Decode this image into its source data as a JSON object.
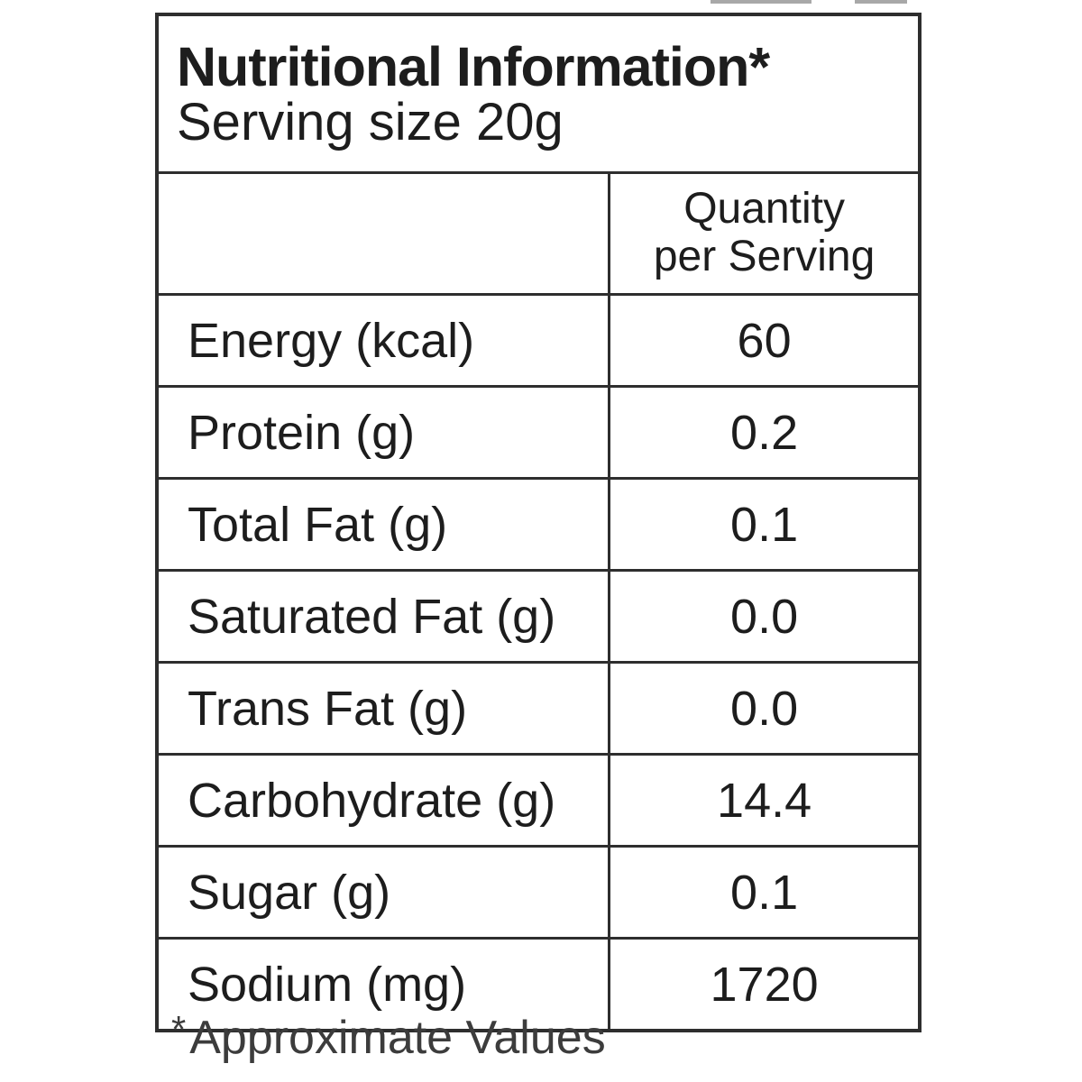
{
  "table": {
    "title": "Nutritional Information*",
    "serving_size": "Serving size 20g",
    "col_header_line1": "Quantity",
    "col_header_line2": "per Serving",
    "rows": [
      {
        "label": "Energy (kcal)",
        "value": "60"
      },
      {
        "label": "Protein (g)",
        "value": "0.2"
      },
      {
        "label": "Total Fat (g)",
        "value": "0.1"
      },
      {
        "label": "Saturated Fat (g)",
        "value": "0.0"
      },
      {
        "label": "Trans Fat (g)",
        "value": "0.0"
      },
      {
        "label": "Carbohydrate (g)",
        "value": "14.4"
      },
      {
        "label": "Sugar (g)",
        "value": "0.1"
      },
      {
        "label": "Sodium (mg)",
        "value": "1720"
      }
    ],
    "footnote_marker": "*",
    "footnote": "Approximate Values"
  },
  "colors": {
    "background": "#ffffff",
    "border": "#2e2e2e",
    "text": "#1d1d1d",
    "footnote_text": "#3c3c3c"
  }
}
